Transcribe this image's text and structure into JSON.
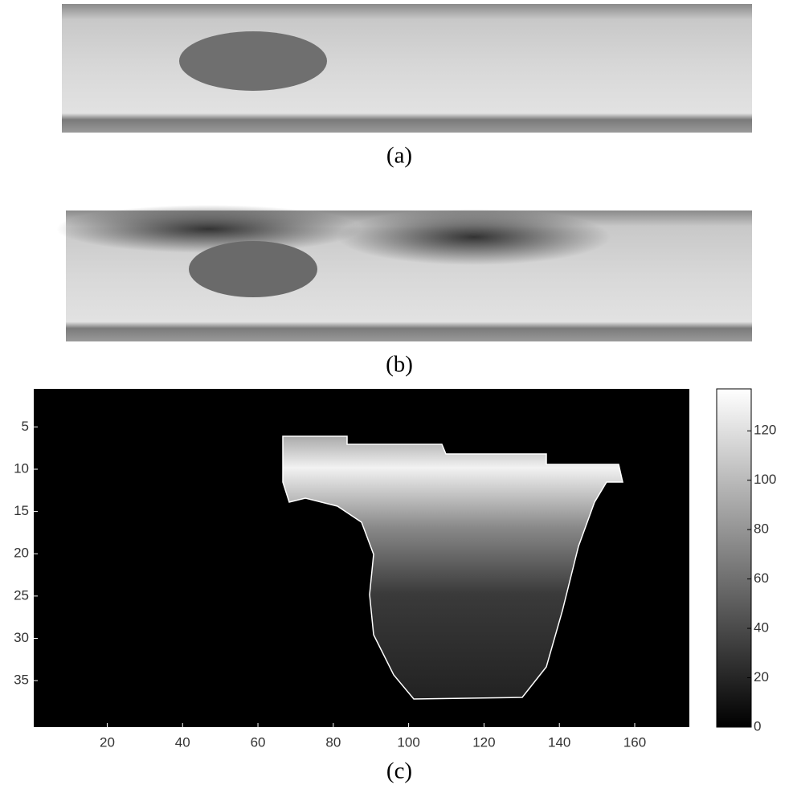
{
  "panels": [
    {
      "label": "(a)"
    },
    {
      "label": "(b)"
    },
    {
      "label": "(c)",
      "xlim": [
        0.5,
        174.5
      ],
      "xticks": [
        20,
        40,
        60,
        80,
        100,
        120,
        140,
        160
      ],
      "ylim": [
        0.5,
        40.5
      ],
      "yticks": [
        5,
        10,
        15,
        20,
        25,
        30,
        35
      ],
      "colorbar": {
        "lim": [
          0,
          137
        ],
        "ticks": [
          0,
          20,
          40,
          60,
          80,
          100,
          120
        ]
      }
    }
  ]
}
